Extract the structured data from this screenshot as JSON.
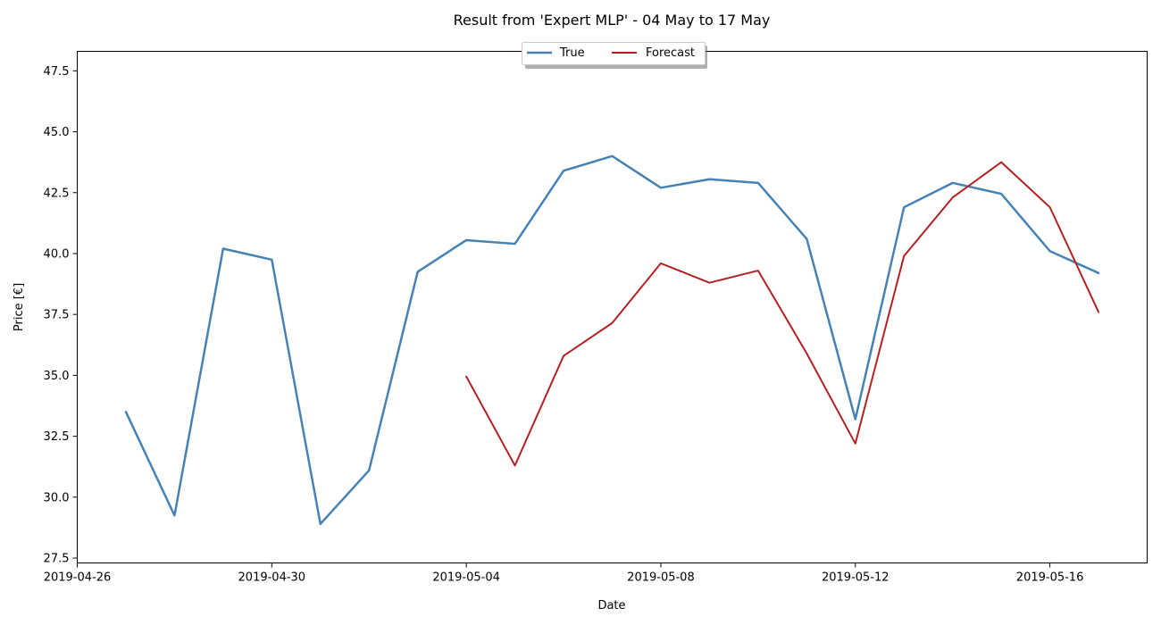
{
  "chart_data": {
    "type": "line",
    "title": "Result from 'Expert MLP' - 04 May to 17 May",
    "xlabel": "Date",
    "ylabel": "Price [€]",
    "xlim": [
      "2019-04-26",
      "2019-05-18"
    ],
    "ylim": [
      27.3,
      48.3
    ],
    "x_ticks": [
      "2019-04-26",
      "2019-04-30",
      "2019-05-04",
      "2019-05-08",
      "2019-05-12",
      "2019-05-16"
    ],
    "y_ticks": [
      27.5,
      30.0,
      32.5,
      35.0,
      37.5,
      40.0,
      42.5,
      45.0,
      47.5
    ],
    "y_tick_labels": [
      "27.5",
      "30.0",
      "32.5",
      "35.0",
      "37.5",
      "40.0",
      "42.5",
      "45.0",
      "47.5"
    ],
    "grid": false,
    "legend_position": "top-center",
    "series": [
      {
        "name": "True",
        "color": "#4682b4",
        "x": [
          "2019-04-27",
          "2019-04-28",
          "2019-04-29",
          "2019-04-30",
          "2019-05-01",
          "2019-05-02",
          "2019-05-03",
          "2019-05-04",
          "2019-05-05",
          "2019-05-06",
          "2019-05-07",
          "2019-05-08",
          "2019-05-09",
          "2019-05-10",
          "2019-05-11",
          "2019-05-12",
          "2019-05-13",
          "2019-05-14",
          "2019-05-15",
          "2019-05-16",
          "2019-05-17"
        ],
        "values": [
          33.5,
          29.25,
          40.2,
          39.75,
          28.9,
          31.1,
          39.25,
          40.55,
          40.4,
          43.4,
          44.0,
          42.7,
          43.05,
          42.9,
          40.6,
          33.2,
          41.9,
          42.9,
          42.45,
          40.1,
          39.2
        ]
      },
      {
        "name": "Forecast",
        "color": "#b22222",
        "x": [
          "2019-05-04",
          "2019-05-05",
          "2019-05-06",
          "2019-05-07",
          "2019-05-08",
          "2019-05-09",
          "2019-05-10",
          "2019-05-11",
          "2019-05-12",
          "2019-05-13",
          "2019-05-14",
          "2019-05-15",
          "2019-05-16",
          "2019-05-17"
        ],
        "values": [
          34.95,
          31.3,
          35.8,
          37.15,
          39.6,
          38.8,
          39.3,
          35.9,
          32.2,
          39.9,
          42.3,
          43.75,
          41.9,
          37.6
        ]
      }
    ]
  }
}
